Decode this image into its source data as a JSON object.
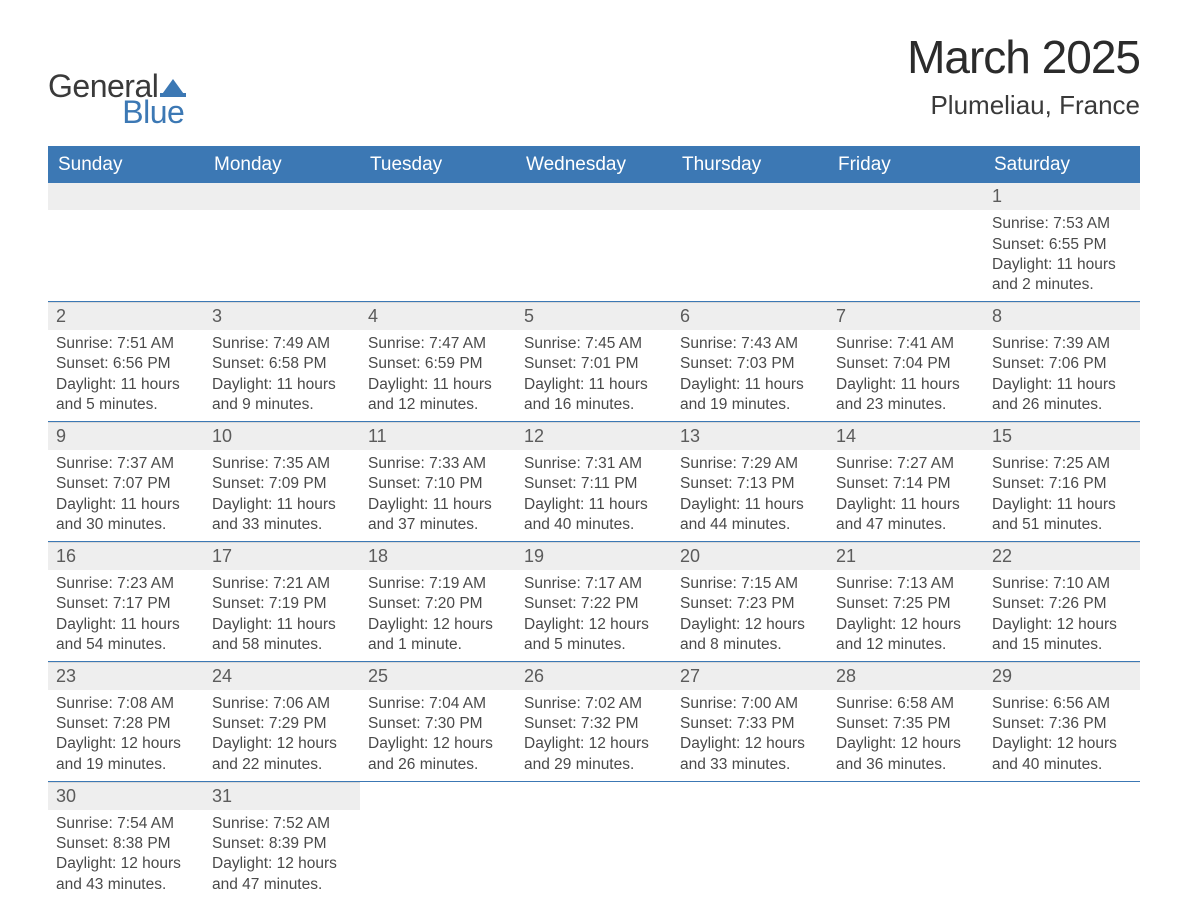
{
  "logo": {
    "text1": "General",
    "text2": "Blue",
    "icon_color": "#3c78b4",
    "text1_color": "#3a3a3a"
  },
  "title": "March 2025",
  "subtitle": "Plumeliau, France",
  "colors": {
    "header_bg": "#3c78b4",
    "header_fg": "#ffffff",
    "daynum_bg": "#eeeeee",
    "row_border": "#3c78b4",
    "body_text": "#4a4a4a"
  },
  "weekdays": [
    "Sunday",
    "Monday",
    "Tuesday",
    "Wednesday",
    "Thursday",
    "Friday",
    "Saturday"
  ],
  "labels": {
    "sunrise": "Sunrise:",
    "sunset": "Sunset:",
    "daylight": "Daylight:"
  },
  "weeks": [
    [
      null,
      null,
      null,
      null,
      null,
      null,
      {
        "n": "1",
        "sr": "7:53 AM",
        "ss": "6:55 PM",
        "dl": "11 hours and 2 minutes."
      }
    ],
    [
      {
        "n": "2",
        "sr": "7:51 AM",
        "ss": "6:56 PM",
        "dl": "11 hours and 5 minutes."
      },
      {
        "n": "3",
        "sr": "7:49 AM",
        "ss": "6:58 PM",
        "dl": "11 hours and 9 minutes."
      },
      {
        "n": "4",
        "sr": "7:47 AM",
        "ss": "6:59 PM",
        "dl": "11 hours and 12 minutes."
      },
      {
        "n": "5",
        "sr": "7:45 AM",
        "ss": "7:01 PM",
        "dl": "11 hours and 16 minutes."
      },
      {
        "n": "6",
        "sr": "7:43 AM",
        "ss": "7:03 PM",
        "dl": "11 hours and 19 minutes."
      },
      {
        "n": "7",
        "sr": "7:41 AM",
        "ss": "7:04 PM",
        "dl": "11 hours and 23 minutes."
      },
      {
        "n": "8",
        "sr": "7:39 AM",
        "ss": "7:06 PM",
        "dl": "11 hours and 26 minutes."
      }
    ],
    [
      {
        "n": "9",
        "sr": "7:37 AM",
        "ss": "7:07 PM",
        "dl": "11 hours and 30 minutes."
      },
      {
        "n": "10",
        "sr": "7:35 AM",
        "ss": "7:09 PM",
        "dl": "11 hours and 33 minutes."
      },
      {
        "n": "11",
        "sr": "7:33 AM",
        "ss": "7:10 PM",
        "dl": "11 hours and 37 minutes."
      },
      {
        "n": "12",
        "sr": "7:31 AM",
        "ss": "7:11 PM",
        "dl": "11 hours and 40 minutes."
      },
      {
        "n": "13",
        "sr": "7:29 AM",
        "ss": "7:13 PM",
        "dl": "11 hours and 44 minutes."
      },
      {
        "n": "14",
        "sr": "7:27 AM",
        "ss": "7:14 PM",
        "dl": "11 hours and 47 minutes."
      },
      {
        "n": "15",
        "sr": "7:25 AM",
        "ss": "7:16 PM",
        "dl": "11 hours and 51 minutes."
      }
    ],
    [
      {
        "n": "16",
        "sr": "7:23 AM",
        "ss": "7:17 PM",
        "dl": "11 hours and 54 minutes."
      },
      {
        "n": "17",
        "sr": "7:21 AM",
        "ss": "7:19 PM",
        "dl": "11 hours and 58 minutes."
      },
      {
        "n": "18",
        "sr": "7:19 AM",
        "ss": "7:20 PM",
        "dl": "12 hours and 1 minute."
      },
      {
        "n": "19",
        "sr": "7:17 AM",
        "ss": "7:22 PM",
        "dl": "12 hours and 5 minutes."
      },
      {
        "n": "20",
        "sr": "7:15 AM",
        "ss": "7:23 PM",
        "dl": "12 hours and 8 minutes."
      },
      {
        "n": "21",
        "sr": "7:13 AM",
        "ss": "7:25 PM",
        "dl": "12 hours and 12 minutes."
      },
      {
        "n": "22",
        "sr": "7:10 AM",
        "ss": "7:26 PM",
        "dl": "12 hours and 15 minutes."
      }
    ],
    [
      {
        "n": "23",
        "sr": "7:08 AM",
        "ss": "7:28 PM",
        "dl": "12 hours and 19 minutes."
      },
      {
        "n": "24",
        "sr": "7:06 AM",
        "ss": "7:29 PM",
        "dl": "12 hours and 22 minutes."
      },
      {
        "n": "25",
        "sr": "7:04 AM",
        "ss": "7:30 PM",
        "dl": "12 hours and 26 minutes."
      },
      {
        "n": "26",
        "sr": "7:02 AM",
        "ss": "7:32 PM",
        "dl": "12 hours and 29 minutes."
      },
      {
        "n": "27",
        "sr": "7:00 AM",
        "ss": "7:33 PM",
        "dl": "12 hours and 33 minutes."
      },
      {
        "n": "28",
        "sr": "6:58 AM",
        "ss": "7:35 PM",
        "dl": "12 hours and 36 minutes."
      },
      {
        "n": "29",
        "sr": "6:56 AM",
        "ss": "7:36 PM",
        "dl": "12 hours and 40 minutes."
      }
    ],
    [
      {
        "n": "30",
        "sr": "7:54 AM",
        "ss": "8:38 PM",
        "dl": "12 hours and 43 minutes."
      },
      {
        "n": "31",
        "sr": "7:52 AM",
        "ss": "8:39 PM",
        "dl": "12 hours and 47 minutes."
      },
      null,
      null,
      null,
      null,
      null
    ]
  ]
}
